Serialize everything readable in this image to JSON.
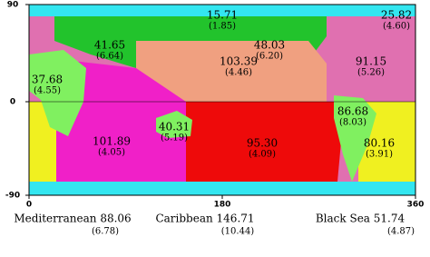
{
  "map": {
    "y_ticks": [
      "90",
      "0",
      "-90"
    ],
    "x_ticks": [
      "0",
      "180",
      "360"
    ],
    "regions": [
      {
        "value": "15.71",
        "error": "(1.85)"
      },
      {
        "value": "25.82",
        "error": "(4.60)"
      },
      {
        "value": "41.65",
        "error": "(6.64)"
      },
      {
        "value": "48.03",
        "error": "(6.20)"
      },
      {
        "value": "103.39",
        "error": "(4.46)"
      },
      {
        "value": "91.15",
        "error": "(5.26)"
      },
      {
        "value": "37.68",
        "error": "(4.55)"
      },
      {
        "value": "101.89",
        "error": "(4.05)"
      },
      {
        "value": "40.31",
        "error": "(5.19)"
      },
      {
        "value": "95.30",
        "error": "(4.09)"
      },
      {
        "value": "86.68",
        "error": "(8.03)"
      },
      {
        "value": "80.16",
        "error": "(3.91)"
      }
    ],
    "seas": [
      {
        "label": "Mediterranean 88.06",
        "error": "(6.78)"
      },
      {
        "label": "Caribbean 146.71",
        "error": "(10.44)"
      },
      {
        "label": "Black Sea 51.74",
        "error": "(4.87)"
      }
    ]
  }
}
